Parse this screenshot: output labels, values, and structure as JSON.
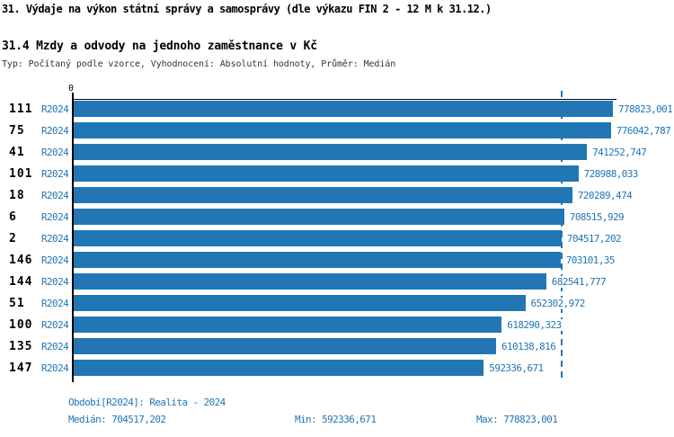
{
  "header": {
    "title": "31. Výdaje na výkon státní správy a samosprávy (dle výkazu FIN 2 - 12 M k 31.12.)",
    "subtitle": "31.4 Mzdy a odvody na jednoho zaměstnance v Kč",
    "meta": "Typ: Počítaný podle vzorce, Vyhodnocení: Absolutní hodnoty, Průměr: Medián"
  },
  "chart_data": {
    "type": "bar",
    "orientation": "horizontal",
    "x_axis": {
      "origin_label": "0",
      "max": 778823.001
    },
    "grid": false,
    "legend": null,
    "rows": [
      {
        "id": "111",
        "period": "R2024",
        "value": 778823.001,
        "label": "778823,001"
      },
      {
        "id": "75",
        "period": "R2024",
        "value": 776042.787,
        "label": "776042,787"
      },
      {
        "id": "41",
        "period": "R2024",
        "value": 741252.747,
        "label": "741252,747"
      },
      {
        "id": "101",
        "period": "R2024",
        "value": 728988.033,
        "label": "728988,033"
      },
      {
        "id": "18",
        "period": "R2024",
        "value": 720289.474,
        "label": "720289,474"
      },
      {
        "id": "6",
        "period": "R2024",
        "value": 708515.929,
        "label": "708515,929"
      },
      {
        "id": "2",
        "period": "R2024",
        "value": 704517.202,
        "label": "704517,202"
      },
      {
        "id": "146",
        "period": "R2024",
        "value": 703101.35,
        "label": "703101,35"
      },
      {
        "id": "144",
        "period": "R2024",
        "value": 682541.777,
        "label": "682541,777"
      },
      {
        "id": "51",
        "period": "R2024",
        "value": 652302.972,
        "label": "652302,972"
      },
      {
        "id": "100",
        "period": "R2024",
        "value": 618290.323,
        "label": "618290,323"
      },
      {
        "id": "135",
        "period": "R2024",
        "value": 610138.816,
        "label": "610138,816"
      },
      {
        "id": "147",
        "period": "R2024",
        "value": 592336.671,
        "label": "592336,671"
      }
    ],
    "median": {
      "value": 704517.202,
      "label": "704517,202"
    },
    "colors": {
      "bar": "#2276B4",
      "median_line": "#2276B4",
      "axis": "#000000",
      "blue_text": "#2276B4"
    }
  },
  "footer": {
    "period_line": "Období[R2024]: Realita - 2024",
    "median_label": "Medián: 704517,202",
    "min_label": "Min: 592336,671",
    "max_label": "Max: 778823,001"
  }
}
